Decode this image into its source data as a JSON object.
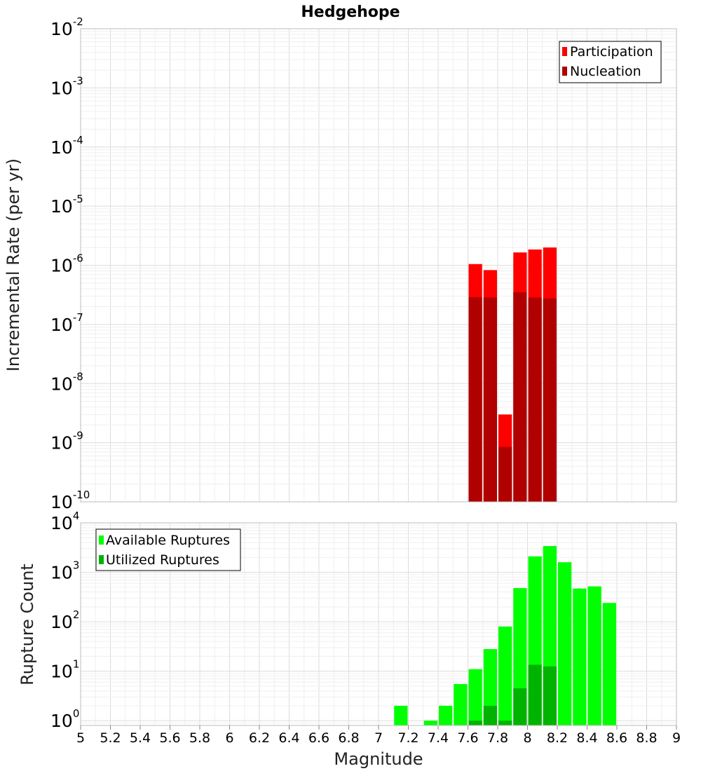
{
  "chart_data": [
    {
      "type": "bar",
      "panel": "top",
      "title": "Hedgehope",
      "xlabel": "",
      "ylabel": "Incremental Rate (per yr)",
      "yscale": "log",
      "xlim": [
        5,
        9
      ],
      "ylim": [
        1e-10,
        0.01
      ],
      "grid": true,
      "legend_position": "top-right",
      "bin_width": 0.1,
      "ytick_labels": [
        {
          "base": "10",
          "exp": "-10"
        },
        {
          "base": "10",
          "exp": "-9"
        },
        {
          "base": "10",
          "exp": "-8"
        },
        {
          "base": "10",
          "exp": "-7"
        },
        {
          "base": "10",
          "exp": "-6"
        },
        {
          "base": "10",
          "exp": "-5"
        },
        {
          "base": "10",
          "exp": "-4"
        },
        {
          "base": "10",
          "exp": "-3"
        },
        {
          "base": "10",
          "exp": "-2"
        }
      ],
      "x": [
        7.65,
        7.75,
        7.85,
        7.95,
        8.05,
        8.15
      ],
      "series": [
        {
          "name": "Participation",
          "color": "#ff0000",
          "values": [
            1.05e-06,
            8.3e-07,
            3e-09,
            1.65e-06,
            1.85e-06,
            2e-06
          ]
        },
        {
          "name": "Nucleation",
          "color": "#b00000",
          "values": [
            2.9e-07,
            2.85e-07,
            8.5e-10,
            3.5e-07,
            2.85e-07,
            2.75e-07
          ]
        }
      ]
    },
    {
      "type": "bar",
      "panel": "bottom",
      "title": "",
      "xlabel": "Magnitude",
      "ylabel": "Rupture Count",
      "yscale": "log",
      "xlim": [
        5,
        9
      ],
      "ylim": [
        0.8,
        10000
      ],
      "grid": true,
      "legend_position": "top-left",
      "bin_width": 0.1,
      "xtick_labels": [
        "5",
        "5.2",
        "5.4",
        "5.6",
        "5.8",
        "6",
        "6.2",
        "6.4",
        "6.6",
        "6.8",
        "7",
        "7.2",
        "7.4",
        "7.6",
        "7.8",
        "8",
        "8.2",
        "8.4",
        "8.6",
        "8.8",
        "9"
      ],
      "ytick_labels": [
        {
          "base": "10",
          "exp": "0"
        },
        {
          "base": "10",
          "exp": "1"
        },
        {
          "base": "10",
          "exp": "2"
        },
        {
          "base": "10",
          "exp": "3"
        },
        {
          "base": "10",
          "exp": "4"
        }
      ],
      "x": [
        7.15,
        7.35,
        7.45,
        7.55,
        7.65,
        7.75,
        7.85,
        7.95,
        8.05,
        8.15,
        8.25,
        8.35,
        8.45,
        8.55
      ],
      "series": [
        {
          "name": "Available Ruptures",
          "color": "#00ff00",
          "values": [
            2,
            1,
            2,
            5.5,
            11,
            28,
            80,
            480,
            2100,
            3400,
            1600,
            470,
            520,
            240
          ]
        },
        {
          "name": "Utilized Ruptures",
          "color": "#00b300",
          "values": [
            null,
            null,
            null,
            null,
            1,
            2,
            1,
            4.5,
            13.5,
            12.5,
            null,
            null,
            null,
            null
          ]
        }
      ]
    }
  ]
}
